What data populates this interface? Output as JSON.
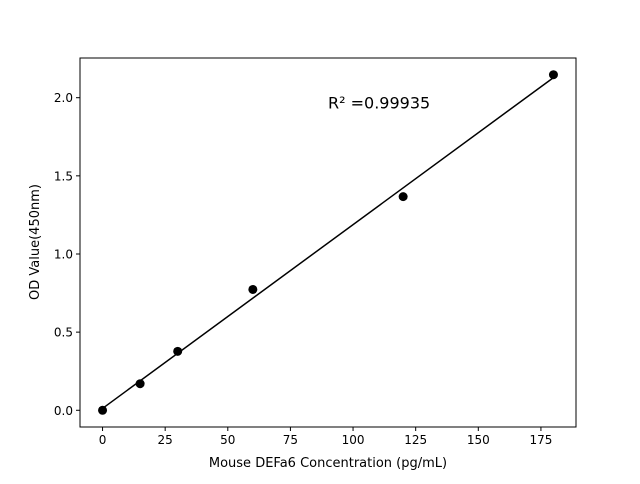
{
  "chart_data": {
    "type": "scatter",
    "title": "",
    "xlabel": "Mouse DEFa6 Concentration (pg/mL)",
    "ylabel": "OD Value(450nm)",
    "xlim": [
      -9,
      189
    ],
    "ylim": [
      -0.107,
      2.254
    ],
    "xticks": [
      0,
      25,
      50,
      75,
      100,
      125,
      150,
      175
    ],
    "yticks": [
      0.0,
      0.5,
      1.0,
      1.5,
      2.0
    ],
    "xtick_labels": [
      "0",
      "25",
      "50",
      "75",
      "100",
      "125",
      "150",
      "175"
    ],
    "ytick_labels": [
      "0.0",
      "0.5",
      "1.0",
      "1.5",
      "2.0"
    ],
    "grid": false,
    "series": [
      {
        "x": [
          0,
          15,
          30,
          60,
          120,
          180
        ],
        "y": [
          0.0,
          0.17,
          0.377,
          0.773,
          1.367,
          2.147
        ],
        "color": "#000000",
        "marker": "circle"
      }
    ],
    "fit_line": {
      "type": "linear",
      "color": "#000000"
    },
    "annotation": "R² =0.99935"
  }
}
